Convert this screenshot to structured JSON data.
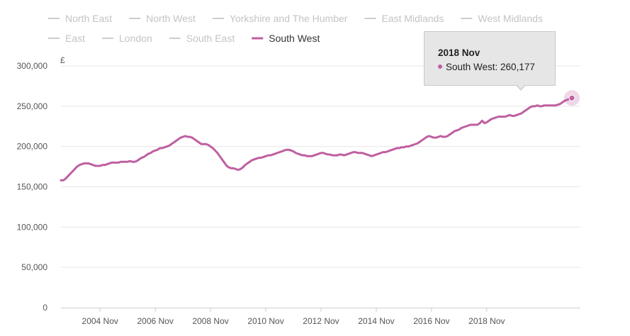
{
  "chart_data": {
    "type": "line",
    "ylabel": "£",
    "ylim": [
      0,
      300000
    ],
    "yticks": [
      "0",
      "50,000",
      "100,000",
      "150,000",
      "200,000",
      "250,000",
      "300,000"
    ],
    "xticks": [
      "2004 Nov",
      "2006 Nov",
      "2008 Nov",
      "2010 Nov",
      "2012 Nov",
      "2014 Nov",
      "2016 Nov",
      "2018 Nov"
    ],
    "grid": true,
    "legend_position": "top",
    "legend": [
      {
        "name": "North East",
        "active": false
      },
      {
        "name": "North West",
        "active": false
      },
      {
        "name": "Yorkshire and The Humber",
        "active": false
      },
      {
        "name": "East Midlands",
        "active": false
      },
      {
        "name": "West Midlands",
        "active": false
      },
      {
        "name": "East",
        "active": false
      },
      {
        "name": "London",
        "active": false
      },
      {
        "name": "South East",
        "active": false
      },
      {
        "name": "South West",
        "active": true
      }
    ],
    "series": [
      {
        "name": "South West",
        "color": "#bf5fa0",
        "x_start": "2003 Jun",
        "x_end": "2018 Nov",
        "values": [
          158000,
          158000,
          160000,
          163000,
          166000,
          169000,
          172000,
          175000,
          177000,
          178000,
          179000,
          179000,
          179000,
          178000,
          177000,
          176000,
          176000,
          176000,
          177000,
          177000,
          178000,
          179000,
          180000,
          180000,
          180000,
          180000,
          181000,
          181000,
          181000,
          181000,
          182000,
          181000,
          181000,
          182000,
          184000,
          186000,
          187000,
          189000,
          191000,
          192000,
          194000,
          195000,
          196000,
          198000,
          198000,
          199000,
          200000,
          201000,
          203000,
          205000,
          207000,
          209000,
          211000,
          212000,
          213000,
          212000,
          212000,
          211000,
          209000,
          207000,
          205000,
          203000,
          203000,
          203000,
          202000,
          200000,
          198000,
          195000,
          192000,
          188000,
          184000,
          180000,
          176000,
          174000,
          173000,
          173000,
          172000,
          171000,
          172000,
          174000,
          177000,
          179000,
          181000,
          183000,
          184000,
          185000,
          186000,
          186000,
          187000,
          188000,
          189000,
          189000,
          190000,
          191000,
          192000,
          193000,
          194000,
          195000,
          196000,
          196000,
          195000,
          194000,
          192000,
          191000,
          190000,
          189000,
          189000,
          188000,
          188000,
          188000,
          189000,
          190000,
          191000,
          192000,
          192000,
          191000,
          190000,
          190000,
          189000,
          189000,
          189000,
          190000,
          190000,
          189000,
          190000,
          191000,
          192000,
          193000,
          193000,
          192000,
          192000,
          192000,
          191000,
          190000,
          189000,
          188000,
          189000,
          190000,
          191000,
          192000,
          193000,
          193000,
          194000,
          195000,
          196000,
          197000,
          198000,
          198000,
          199000,
          199000,
          200000,
          200000,
          201000,
          202000,
          203000,
          204000,
          206000,
          208000,
          210000,
          212000,
          213000,
          212000,
          211000,
          211000,
          212000,
          213000,
          212000,
          212000,
          213000,
          215000,
          217000,
          219000,
          220000,
          221000,
          223000,
          224000,
          225000,
          226000,
          227000,
          227000,
          227000,
          227000,
          229000,
          232000,
          229000,
          230000,
          232000,
          234000,
          235000,
          236000,
          237000,
          237000,
          237000,
          237000,
          238000,
          239000,
          238000,
          238000,
          239000,
          240000,
          241000,
          243000,
          245000,
          247000,
          249000,
          250000,
          250000,
          251000,
          250000,
          250000,
          251000,
          251000,
          251000,
          251000,
          251000,
          251000,
          252000,
          253000,
          255000,
          257000,
          258000,
          259000,
          260177
        ]
      }
    ]
  },
  "tooltip": {
    "title": "2018 Nov",
    "series": "South West",
    "value": "260,177",
    "text": "South West: 260,177"
  },
  "colors": {
    "active_series": "#bf5fa0",
    "inactive_legend": "#cccccc",
    "grid": "#e6e6e6",
    "axis": "#cccccc"
  }
}
